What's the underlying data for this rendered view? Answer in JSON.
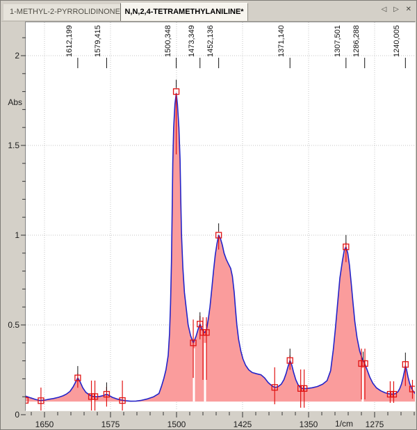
{
  "tabbar": {
    "tabs": [
      {
        "label": "1-METHYL-2-PYRROLIDINONE",
        "active": false
      },
      {
        "label": "N,N,2,4-TETRAMETHYLANILINE*",
        "active": true
      }
    ],
    "nav": {
      "prev": "◁",
      "next": "▷",
      "close": "✕"
    }
  },
  "chart_data": {
    "type": "area",
    "title": "",
    "xlabel": "1/cm",
    "ylabel": "Abs",
    "x_axis": {
      "min": 1228,
      "max": 1672,
      "reversed": true,
      "major_ticks": [
        1650,
        1575,
        1500,
        1425,
        1350,
        1275
      ],
      "minor_step": 15
    },
    "y_axis": {
      "min": 0,
      "max": 2.18,
      "major_ticks": [
        0,
        0.5,
        1,
        1.5,
        2
      ],
      "tick_labels": [
        "0",
        "0.5",
        "1",
        "1.5",
        "2"
      ],
      "minor_step": 0.1
    },
    "grid": "dotted",
    "baseline": 0.073,
    "colors": {
      "fill": "#fa9c9c",
      "line": "#2323c8",
      "marker": "#e01212",
      "grid": "#c4c4c4",
      "background": "#d4d0c8",
      "plot_bg": "#ffffff",
      "tick": "#333333"
    },
    "peak_labels": [
      {
        "text": "1612,199",
        "nu": 1612.199
      },
      {
        "text": "1579,415",
        "nu": 1579.415
      },
      {
        "text": "1500,348",
        "nu": 1500.348
      },
      {
        "text": "1473,349",
        "nu": 1473.349
      },
      {
        "text": "1452,136",
        "nu": 1452.136
      },
      {
        "text": "1371,140",
        "nu": 1371.14
      },
      {
        "text": "1307,501",
        "nu": 1307.501
      },
      {
        "text": "1286,288",
        "nu": 1286.288
      },
      {
        "text": "1240,005",
        "nu": 1240.005
      }
    ],
    "markers": [
      {
        "nu": 1671.8,
        "abs": 0.08,
        "twin": false,
        "labeled": false,
        "line_top": 0.12,
        "line_bot": 0.04
      },
      {
        "nu": 1654,
        "abs": 0.078,
        "twin": false,
        "labeled": false,
        "line_top": 0.151,
        "line_bot": 0.0
      },
      {
        "nu": 1612.199,
        "abs": 0.205,
        "twin": false,
        "labeled": true,
        "line_top": 0.23,
        "line_bot": 0.15
      },
      {
        "nu": 1594.7,
        "abs": 0.101,
        "twin": true,
        "labeled": false,
        "line_top": 0.19,
        "line_bot": 0.02
      },
      {
        "nu": 1579.415,
        "abs": 0.114,
        "twin": false,
        "labeled": true,
        "line_top": 0.155,
        "line_bot": 0.045
      },
      {
        "nu": 1561.5,
        "abs": 0.079,
        "twin": false,
        "labeled": false,
        "line_top": 0.19,
        "line_bot": 0.012
      },
      {
        "nu": 1500.348,
        "abs": 1.8,
        "twin": false,
        "labeled": true,
        "line_top": 1.79,
        "line_bot": 1.45
      },
      {
        "nu": 1481,
        "abs": 0.4,
        "twin": false,
        "labeled": false,
        "line_top": 0.53,
        "line_bot": 0.205
      },
      {
        "nu": 1473.349,
        "abs": 0.505,
        "twin": false,
        "labeled": true,
        "line_top": 0.55,
        "line_bot": 0.42
      },
      {
        "nu": 1468,
        "abs": 0.458,
        "twin": true,
        "labeled": false,
        "line_top": 0.543,
        "line_bot": 0.194
      },
      {
        "nu": 1452.136,
        "abs": 1.0,
        "twin": false,
        "labeled": true,
        "line_top": 1.0,
        "line_bot": 0.92
      },
      {
        "nu": 1388.5,
        "abs": 0.152,
        "twin": false,
        "labeled": false,
        "line_top": 0.264,
        "line_bot": 0.058
      },
      {
        "nu": 1371.14,
        "abs": 0.302,
        "twin": false,
        "labeled": true,
        "line_top": 0.33,
        "line_bot": 0.25
      },
      {
        "nu": 1357,
        "abs": 0.146,
        "twin": true,
        "labeled": false,
        "line_top": 0.252,
        "line_bot": 0.039
      },
      {
        "nu": 1307.501,
        "abs": 0.935,
        "twin": false,
        "labeled": true,
        "line_top": 0.96,
        "line_bot": 0.85
      },
      {
        "nu": 1288,
        "abs": 0.285,
        "twin": true,
        "labeled": true,
        "line_top": 0.368,
        "line_bot": 0.085
      },
      {
        "nu": 1255.3,
        "abs": 0.114,
        "twin": true,
        "labeled": false,
        "line_top": 0.186,
        "line_bot": 0.066
      },
      {
        "nu": 1240.005,
        "abs": 0.28,
        "twin": false,
        "labeled": true,
        "line_top": 0.3,
        "line_bot": 0.16
      },
      {
        "nu": 1232,
        "abs": 0.143,
        "twin": false,
        "labeled": false,
        "line_top": 0.194,
        "line_bot": 0.089
      }
    ],
    "gaps": [
      {
        "nu": 1594.7,
        "top": 0.095
      },
      {
        "nu": 1480.3,
        "top": 0.37
      },
      {
        "nu": 1467.6,
        "top": 0.4
      },
      {
        "nu": 1288.5,
        "top": 0.26
      }
    ],
    "series": [
      [
        1671.5,
        0.104
      ],
      [
        1666,
        0.094
      ],
      [
        1660,
        0.085
      ],
      [
        1655,
        0.079
      ],
      [
        1650,
        0.081
      ],
      [
        1645,
        0.086
      ],
      [
        1640,
        0.09
      ],
      [
        1634,
        0.097
      ],
      [
        1629,
        0.105
      ],
      [
        1625,
        0.115
      ],
      [
        1621,
        0.13
      ],
      [
        1617.5,
        0.155
      ],
      [
        1614.5,
        0.183
      ],
      [
        1612.2,
        0.205
      ],
      [
        1609.5,
        0.183
      ],
      [
        1606.5,
        0.15
      ],
      [
        1603,
        0.125
      ],
      [
        1599,
        0.11
      ],
      [
        1595,
        0.102
      ],
      [
        1591,
        0.1
      ],
      [
        1587,
        0.102
      ],
      [
        1583,
        0.107
      ],
      [
        1580.5,
        0.112
      ],
      [
        1579.4,
        0.114
      ],
      [
        1577,
        0.108
      ],
      [
        1573,
        0.097
      ],
      [
        1568,
        0.088
      ],
      [
        1563,
        0.082
      ],
      [
        1558,
        0.078
      ],
      [
        1552,
        0.075
      ],
      [
        1546,
        0.076
      ],
      [
        1540,
        0.08
      ],
      [
        1533,
        0.088
      ],
      [
        1526,
        0.1
      ],
      [
        1520,
        0.118
      ],
      [
        1517,
        0.16
      ],
      [
        1514.5,
        0.2
      ],
      [
        1512,
        0.25
      ],
      [
        1509.5,
        0.33
      ],
      [
        1508,
        0.45
      ],
      [
        1506.8,
        0.62
      ],
      [
        1505.8,
        0.85
      ],
      [
        1505,
        1.13
      ],
      [
        1504.3,
        1.4
      ],
      [
        1503.2,
        1.6
      ],
      [
        1501.8,
        1.73
      ],
      [
        1500.35,
        1.79
      ],
      [
        1499,
        1.73
      ],
      [
        1497.3,
        1.6
      ],
      [
        1496,
        1.42
      ],
      [
        1495.2,
        1.2
      ],
      [
        1494.3,
        1.0
      ],
      [
        1492.8,
        0.82
      ],
      [
        1491,
        0.68
      ],
      [
        1489,
        0.595
      ],
      [
        1486.8,
        0.5
      ],
      [
        1484,
        0.44
      ],
      [
        1481,
        0.4
      ],
      [
        1478,
        0.435
      ],
      [
        1475.5,
        0.475
      ],
      [
        1473.35,
        0.505
      ],
      [
        1471.5,
        0.48
      ],
      [
        1469.5,
        0.463
      ],
      [
        1468,
        0.458
      ],
      [
        1466,
        0.472
      ],
      [
        1464,
        0.53
      ],
      [
        1462,
        0.6
      ],
      [
        1460,
        0.7
      ],
      [
        1458,
        0.8
      ],
      [
        1456,
        0.89
      ],
      [
        1454,
        0.955
      ],
      [
        1452.14,
        1.0
      ],
      [
        1450,
        0.98
      ],
      [
        1448,
        0.945
      ],
      [
        1446,
        0.9
      ],
      [
        1443.5,
        0.865
      ],
      [
        1441,
        0.84
      ],
      [
        1438.5,
        0.815
      ],
      [
        1436.5,
        0.77
      ],
      [
        1434.5,
        0.68
      ],
      [
        1433,
        0.585
      ],
      [
        1431.5,
        0.5
      ],
      [
        1429.5,
        0.42
      ],
      [
        1427,
        0.355
      ],
      [
        1424.5,
        0.31
      ],
      [
        1421.5,
        0.275
      ],
      [
        1418,
        0.25
      ],
      [
        1414,
        0.235
      ],
      [
        1409,
        0.228
      ],
      [
        1404,
        0.222
      ],
      [
        1400,
        0.205
      ],
      [
        1396,
        0.18
      ],
      [
        1392,
        0.162
      ],
      [
        1388.5,
        0.152
      ],
      [
        1385,
        0.155
      ],
      [
        1381,
        0.17
      ],
      [
        1378,
        0.195
      ],
      [
        1375.5,
        0.23
      ],
      [
        1373.5,
        0.265
      ],
      [
        1371.14,
        0.302
      ],
      [
        1369,
        0.275
      ],
      [
        1367,
        0.235
      ],
      [
        1364.5,
        0.195
      ],
      [
        1362,
        0.168
      ],
      [
        1359,
        0.15
      ],
      [
        1356,
        0.145
      ],
      [
        1352,
        0.146
      ],
      [
        1346,
        0.15
      ],
      [
        1340,
        0.157
      ],
      [
        1334,
        0.17
      ],
      [
        1329,
        0.19
      ],
      [
        1325,
        0.245
      ],
      [
        1322,
        0.36
      ],
      [
        1319.5,
        0.48
      ],
      [
        1317,
        0.62
      ],
      [
        1314.5,
        0.76
      ],
      [
        1311.5,
        0.86
      ],
      [
        1309.5,
        0.915
      ],
      [
        1307.5,
        0.935
      ],
      [
        1305.5,
        0.9
      ],
      [
        1303.5,
        0.83
      ],
      [
        1301.5,
        0.73
      ],
      [
        1299.5,
        0.62
      ],
      [
        1297.5,
        0.52
      ],
      [
        1295,
        0.43
      ],
      [
        1292,
        0.355
      ],
      [
        1289,
        0.31
      ],
      [
        1286.3,
        0.285
      ],
      [
        1283.5,
        0.25
      ],
      [
        1280.5,
        0.21
      ],
      [
        1277,
        0.175
      ],
      [
        1273,
        0.15
      ],
      [
        1268,
        0.133
      ],
      [
        1263,
        0.122
      ],
      [
        1258,
        0.116
      ],
      [
        1254.5,
        0.114
      ],
      [
        1251,
        0.118
      ],
      [
        1248.5,
        0.128
      ],
      [
        1246.5,
        0.145
      ],
      [
        1244.5,
        0.17
      ],
      [
        1242.5,
        0.21
      ],
      [
        1241,
        0.245
      ],
      [
        1240,
        0.272
      ],
      [
        1238.7,
        0.25
      ],
      [
        1237,
        0.21
      ],
      [
        1235.2,
        0.175
      ],
      [
        1233.2,
        0.15
      ],
      [
        1231,
        0.13
      ],
      [
        1229,
        0.118
      ],
      [
        1228,
        0.113
      ]
    ]
  }
}
